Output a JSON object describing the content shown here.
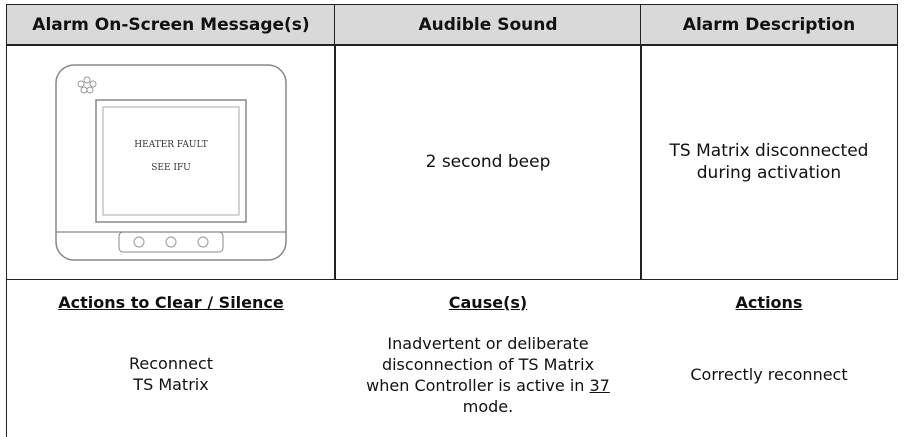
{
  "table": {
    "headers": [
      "Alarm On-Screen Message(s)",
      "Audible Sound",
      "Alarm Description"
    ],
    "device_screen": [
      "HEATER FAULT",
      "SEE IFU"
    ],
    "audible_sound": "2 second beep",
    "alarm_description": "TS Matrix disconnected during activation",
    "subheaders": [
      "Actions to Clear / Silence",
      "Cause(s)",
      "Actions"
    ],
    "actions_to_clear": [
      "Reconnect",
      "TS Matrix"
    ],
    "cause": {
      "text": "Inadvertent or deliberate disconnection of TS Matrix when Controller is active in",
      "link": "37",
      "end": "mode."
    },
    "actions": "Correctly reconnect"
  }
}
